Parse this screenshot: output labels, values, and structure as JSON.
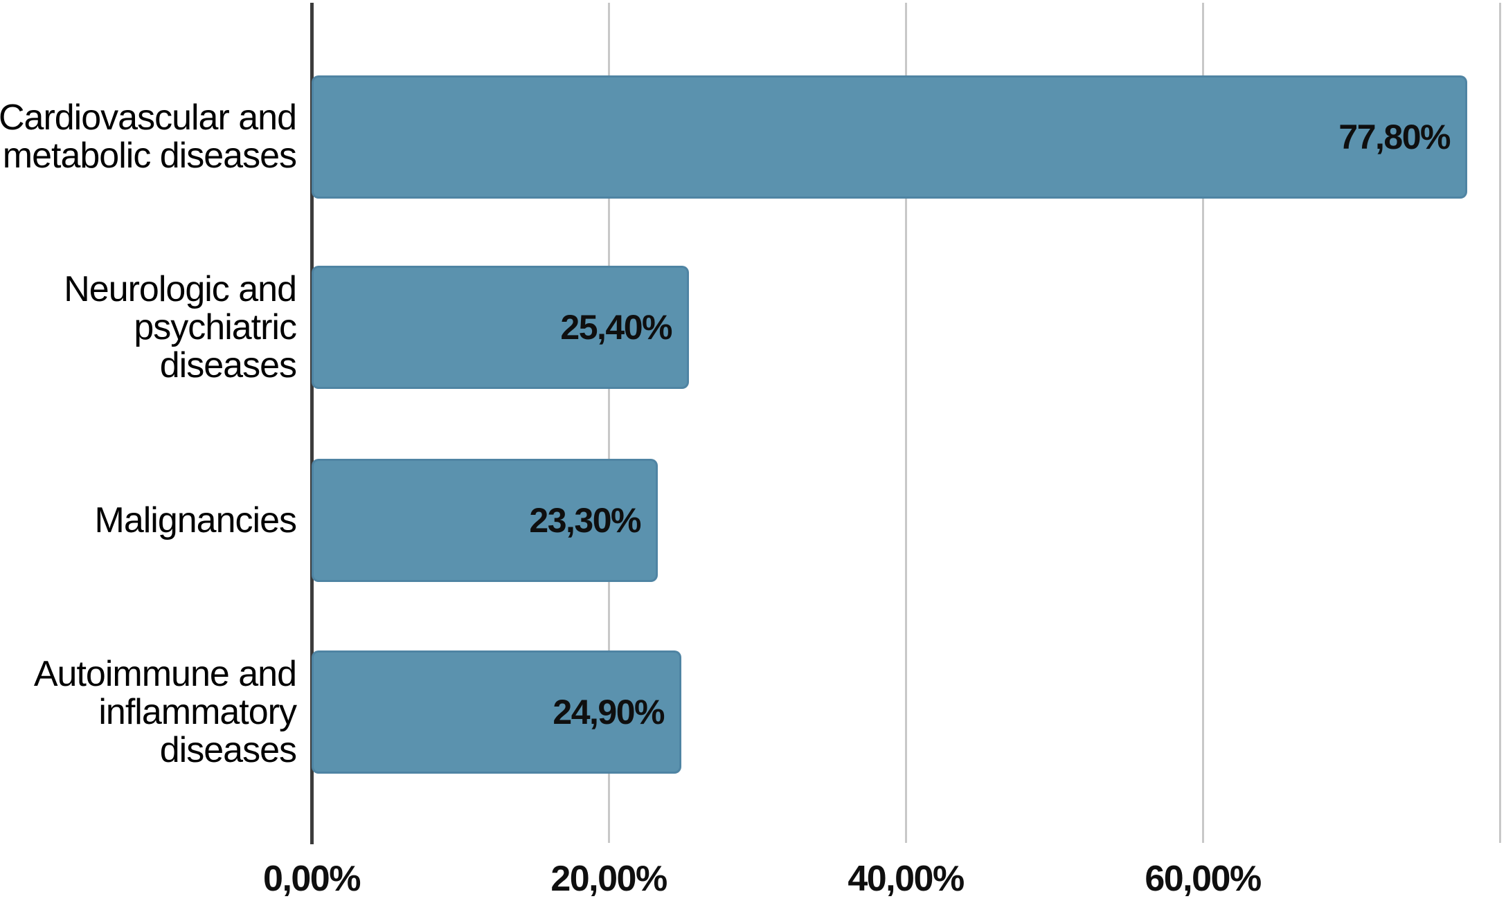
{
  "chart_data": {
    "type": "bar",
    "orientation": "horizontal",
    "title": "",
    "xlabel": "",
    "ylabel": "",
    "xlim": [
      0,
      80.4
    ],
    "grid": "vertical-gridlines",
    "legend": "none",
    "categories": [
      "Cardiovascular and metabolic diseases",
      "Neurologic and psychiatric diseases",
      "Malignancies",
      "Autoimmune and inflammatory diseases"
    ],
    "category_lines": [
      [
        "Cardiovascular and",
        "metabolic diseases"
      ],
      [
        "Neurologic and",
        "psychiatric",
        "diseases"
      ],
      [
        "Malignancies"
      ],
      [
        "Autoimmune and",
        "inflammatory",
        "diseases"
      ]
    ],
    "values": [
      77.8,
      25.4,
      23.3,
      24.9
    ],
    "value_labels": [
      "77,80%",
      "25,40%",
      "23,30%",
      "24,90%"
    ],
    "x_ticks": [
      {
        "value": 0,
        "label": "0,00%"
      },
      {
        "value": 20,
        "label": "20,00%"
      },
      {
        "value": 40,
        "label": "40,00%"
      },
      {
        "value": 60,
        "label": "60,00%"
      }
    ],
    "gridline_values": [
      20,
      40,
      60,
      80
    ],
    "colors": {
      "bar_fill": "#5b92ae",
      "bar_border": "#3e7093",
      "axis_line": "#3c3c3c",
      "gridline": "#c8c8c8",
      "text": "#0f0f0f",
      "background": "#ffffff"
    }
  }
}
